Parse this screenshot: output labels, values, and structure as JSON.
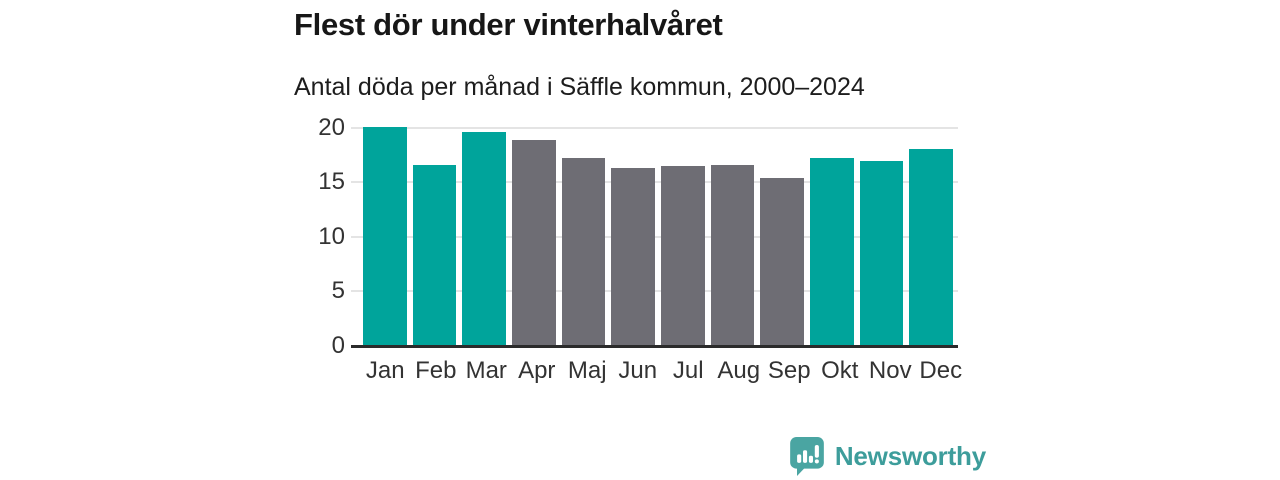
{
  "header": {
    "title": "Flest dör under vinterhalvåret",
    "subtitle": "Antal döda per månad i Säffle kommun, 2000–2024"
  },
  "chart_data": {
    "type": "bar",
    "title": "Flest dör under vinterhalvåret",
    "subtitle": "Antal döda per månad i Säffle kommun, 2000–2024",
    "categories": [
      "Jan",
      "Feb",
      "Mar",
      "Apr",
      "Maj",
      "Jun",
      "Jul",
      "Aug",
      "Sep",
      "Okt",
      "Nov",
      "Dec"
    ],
    "values": [
      20.1,
      16.6,
      19.6,
      18.9,
      17.2,
      16.3,
      16.5,
      16.6,
      15.4,
      17.2,
      17.0,
      18.1
    ],
    "bar_seasons": [
      "winter",
      "winter",
      "winter",
      "summer",
      "summer",
      "summer",
      "summer",
      "summer",
      "summer",
      "winter",
      "winter",
      "winter"
    ],
    "bar_palette": {
      "winter": "#00a49b",
      "summer": "#6e6d74"
    },
    "xlabel": "",
    "ylabel": "",
    "ylim": [
      0,
      20
    ],
    "yticks": [
      0,
      5,
      10,
      15,
      20
    ],
    "grid": true,
    "legend": false,
    "gridline_color": "#e4e4e4",
    "baseline_color": "#2b2b2b"
  },
  "branding": {
    "logo_text": "Newsworthy",
    "logo_text_color": "#3d9d9b",
    "logo_icon_color": "#4aa5a2"
  }
}
